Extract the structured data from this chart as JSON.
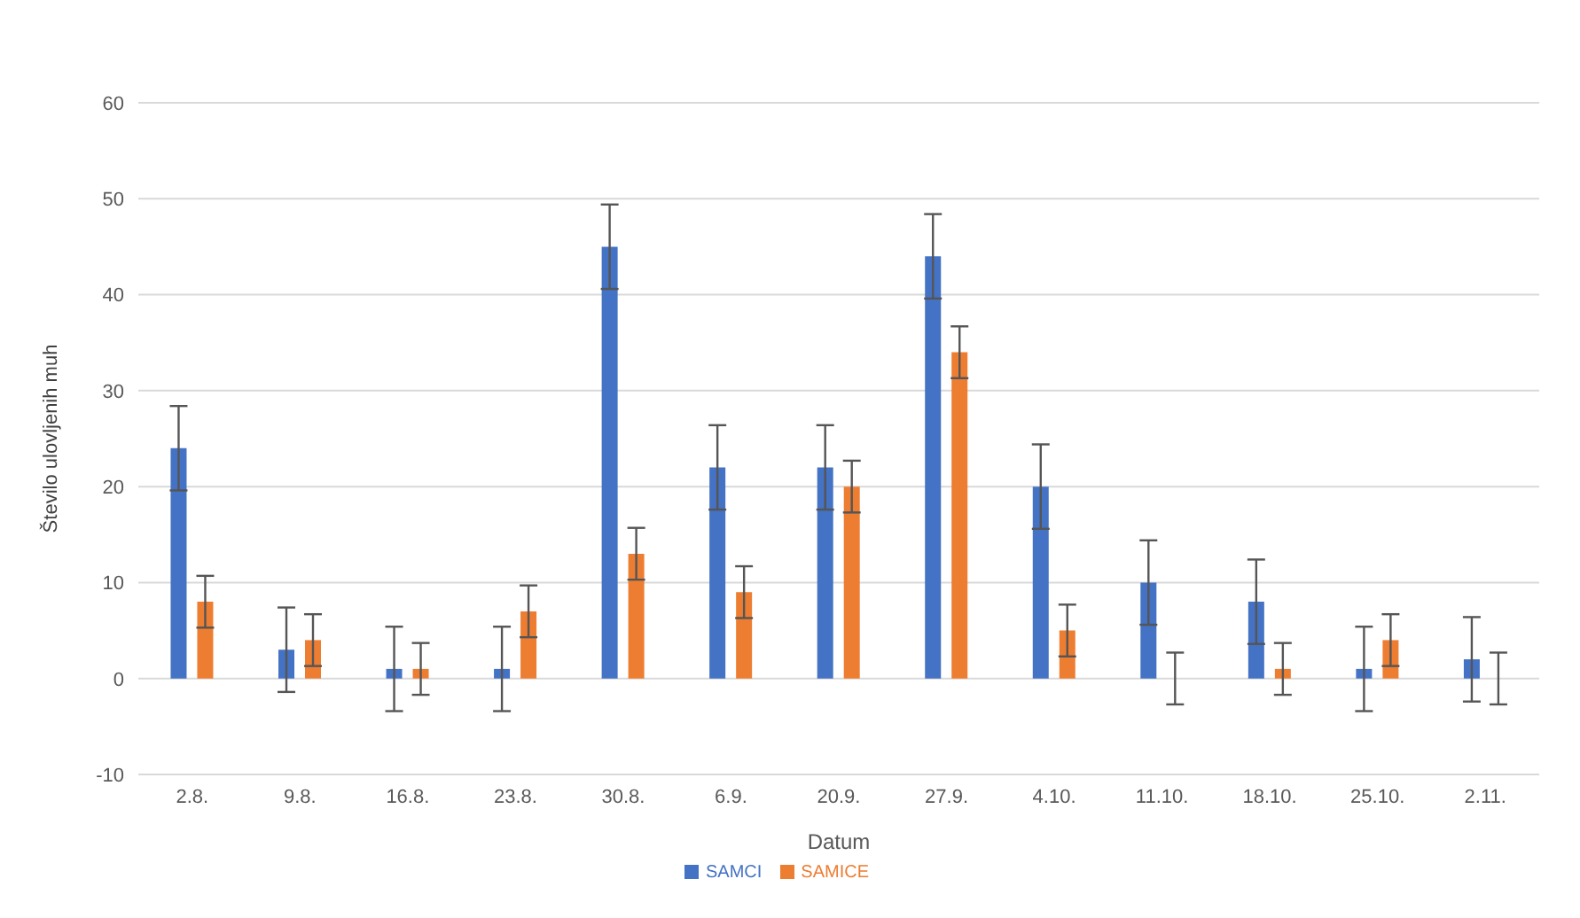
{
  "chart_data": {
    "type": "bar",
    "xlabel": "Datum",
    "ylabel": "Število ulovljenih muh",
    "categories": [
      "2.8.",
      "9.8.",
      "16.8.",
      "23.8.",
      "30.8.",
      "6.9.",
      "20.9.",
      "27.9.",
      "4.10.",
      "11.10.",
      "18.10.",
      "25.10.",
      "2.11."
    ],
    "series": [
      {
        "name": "SAMCI",
        "color": "#4472c4",
        "values": [
          24,
          3,
          1,
          1,
          45,
          22,
          22,
          44,
          20,
          10,
          8,
          1,
          2
        ],
        "errors": [
          4.4,
          4.4,
          4.4,
          4.4,
          4.4,
          4.4,
          4.4,
          4.4,
          4.4,
          4.4,
          4.4,
          4.4,
          4.4
        ]
      },
      {
        "name": "SAMICE",
        "color": "#ed7d31",
        "values": [
          8,
          4,
          1,
          7,
          13,
          9,
          20,
          34,
          5,
          0,
          1,
          4,
          0
        ],
        "errors": [
          2.7,
          2.7,
          2.7,
          2.7,
          2.7,
          2.7,
          2.7,
          2.7,
          2.7,
          2.7,
          2.7,
          2.7,
          2.7
        ]
      }
    ],
    "ylim": [
      -10,
      60
    ],
    "yticks": [
      -10,
      0,
      10,
      20,
      30,
      40,
      50,
      60
    ],
    "grid": "y",
    "legend": "bottom"
  }
}
